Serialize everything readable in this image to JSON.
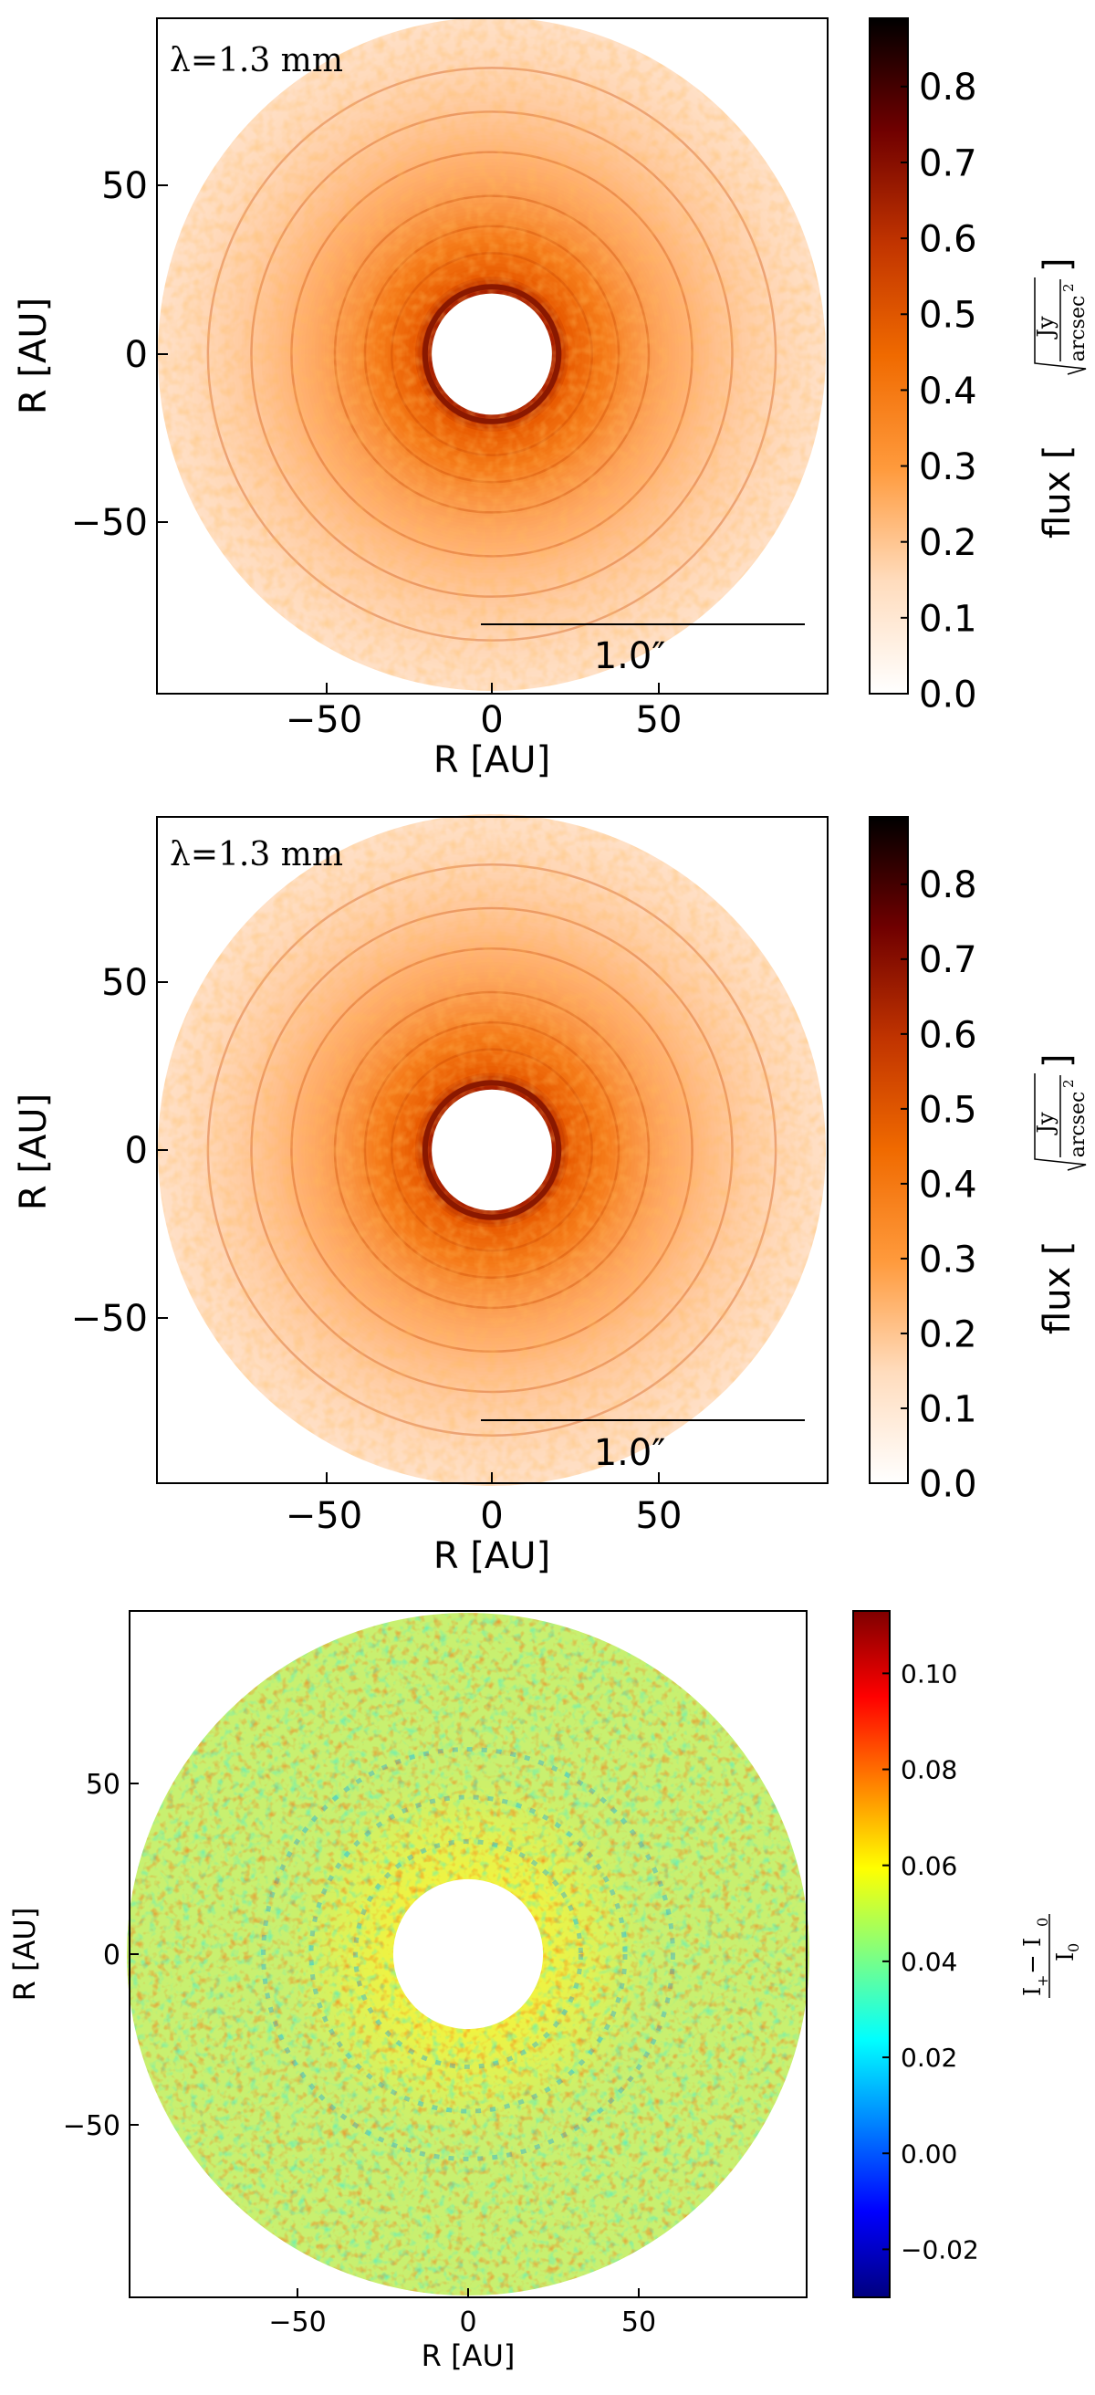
{
  "chart_data": [
    {
      "type": "heatmap",
      "panel": "top",
      "annotation": "λ=1.3 mm",
      "xlabel": "R [AU]",
      "ylabel": "R [AU]",
      "xlim": [
        -100,
        100
      ],
      "ylim": [
        -100,
        100
      ],
      "xticks": [
        -50,
        0,
        50
      ],
      "yticks": [
        50,
        0,
        -50
      ],
      "xtick_labels": [
        "−50",
        "0",
        "50"
      ],
      "ytick_labels": [
        "50",
        "0",
        "−50"
      ],
      "disk_outer_radius_au": 100,
      "hole_radius_au": 18,
      "rings_au": [
        22,
        30,
        38,
        47,
        60,
        72,
        85
      ],
      "scalebar_label": "1.0″",
      "colorbar": {
        "label": "flux [",
        "unit_numerator": "Jy",
        "unit_denominator": "arcsec",
        "unit_exponent": "2",
        "unit_close": "]",
        "range": [
          0,
          0.89
        ],
        "ticks": [
          0.0,
          0.1,
          0.2,
          0.3,
          0.4,
          0.5,
          0.6,
          0.7,
          0.8
        ],
        "tick_labels": [
          "0.0",
          "0.1",
          "0.2",
          "0.3",
          "0.4",
          "0.5",
          "0.6",
          "0.7",
          "0.8"
        ],
        "colormap": "gist_heat_r",
        "colors": [
          "#ffffff",
          "#ffdcbd",
          "#ff9a3c",
          "#f06a00",
          "#c13400",
          "#700000",
          "#000000"
        ]
      }
    },
    {
      "type": "heatmap",
      "panel": "middle",
      "annotation": "λ=1.3 mm",
      "xlabel": "R [AU]",
      "ylabel": "R [AU]",
      "xlim": [
        -100,
        100
      ],
      "ylim": [
        -100,
        100
      ],
      "xticks": [
        -50,
        0,
        50
      ],
      "yticks": [
        50,
        0,
        -50
      ],
      "xtick_labels": [
        "−50",
        "0",
        "50"
      ],
      "ytick_labels": [
        "50",
        "0",
        "−50"
      ],
      "disk_outer_radius_au": 100,
      "hole_radius_au": 18,
      "rings_au": [
        22,
        30,
        38,
        47,
        60,
        72,
        85
      ],
      "scalebar_label": "1.0″",
      "colorbar": {
        "label": "flux [",
        "unit_numerator": "Jy",
        "unit_denominator": "arcsec",
        "unit_exponent": "2",
        "unit_close": "]",
        "range": [
          0,
          0.89
        ],
        "ticks": [
          0.0,
          0.1,
          0.2,
          0.3,
          0.4,
          0.5,
          0.6,
          0.7,
          0.8
        ],
        "tick_labels": [
          "0.0",
          "0.1",
          "0.2",
          "0.3",
          "0.4",
          "0.5",
          "0.6",
          "0.7",
          "0.8"
        ],
        "colormap": "gist_heat_r",
        "colors": [
          "#ffffff",
          "#ffdcbd",
          "#ff9a3c",
          "#f06a00",
          "#c13400",
          "#700000",
          "#000000"
        ]
      }
    },
    {
      "type": "heatmap",
      "panel": "bottom",
      "xlabel": "R [AU]",
      "ylabel": "R [AU]",
      "xlim": [
        -100,
        100
      ],
      "ylim": [
        -100,
        100
      ],
      "xticks": [
        -50,
        0,
        50
      ],
      "yticks": [
        50,
        0,
        -50
      ],
      "xtick_labels": [
        "−50",
        "0",
        "50"
      ],
      "ytick_labels": [
        "50",
        "0",
        "−50"
      ],
      "disk_outer_radius_au": 100,
      "hole_radius_au": 18,
      "colorbar": {
        "label_numerator": "I",
        "label_numerator_sub1": "+",
        "label_minus": "− I",
        "label_numerator_sub2": "0",
        "label_denominator": "I",
        "label_denominator_sub": "0",
        "range": [
          -0.03,
          0.113
        ],
        "ticks": [
          0.1,
          0.08,
          0.06,
          0.04,
          0.02,
          0.0,
          -0.02
        ],
        "tick_labels": [
          "0.10",
          "0.08",
          "0.06",
          "0.04",
          "0.02",
          "0.00",
          "−0.02"
        ],
        "colormap": "jet",
        "colors": [
          "#00007f",
          "#0000ff",
          "#0080ff",
          "#00ffff",
          "#80ff80",
          "#ffff00",
          "#ff8000",
          "#ff0000",
          "#7f0000"
        ],
        "typical_value": 0.05
      }
    }
  ]
}
